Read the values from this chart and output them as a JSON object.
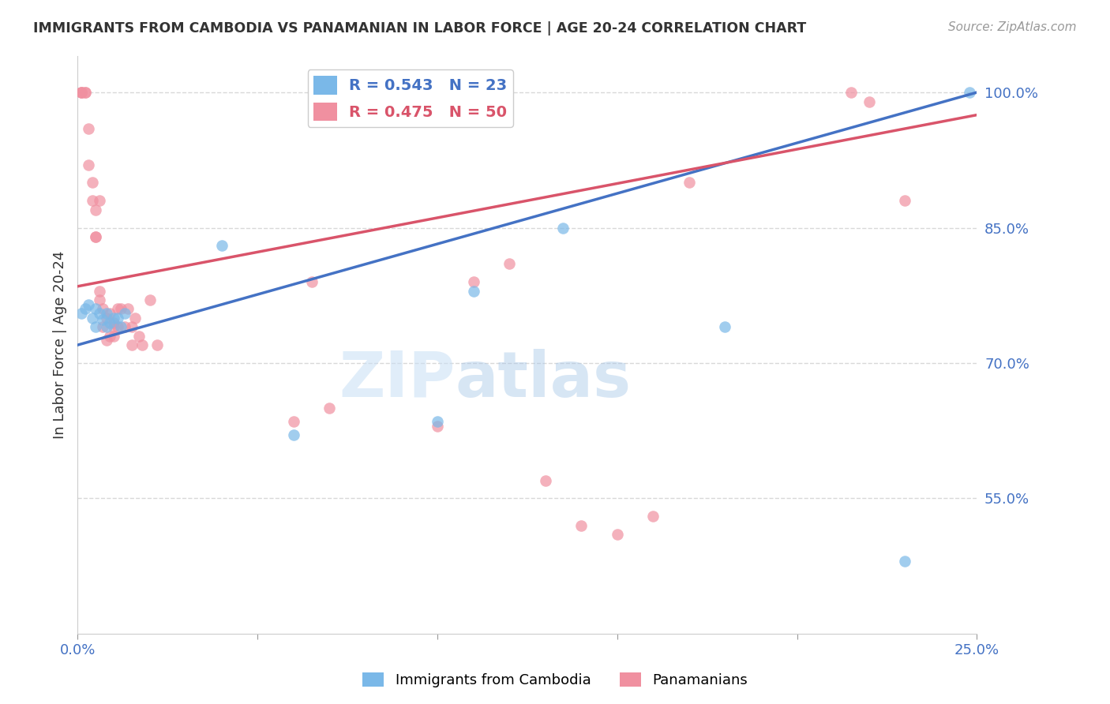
{
  "title": "IMMIGRANTS FROM CAMBODIA VS PANAMANIAN IN LABOR FORCE | AGE 20-24 CORRELATION CHART",
  "source": "Source: ZipAtlas.com",
  "ylabel": "In Labor Force | Age 20-24",
  "xlim": [
    0.0,
    0.25
  ],
  "ylim": [
    0.4,
    1.04
  ],
  "xticks": [
    0.0,
    0.05,
    0.1,
    0.15,
    0.2,
    0.25
  ],
  "xticklabels": [
    "0.0%",
    "",
    "",
    "",
    "",
    "25.0%"
  ],
  "yticks_right": [
    0.55,
    0.7,
    0.85,
    1.0
  ],
  "ytick_labels_right": [
    "55.0%",
    "70.0%",
    "85.0%",
    "100.0%"
  ],
  "blue_R": 0.543,
  "blue_N": 23,
  "pink_R": 0.475,
  "pink_N": 50,
  "blue_color": "#7ab8e8",
  "pink_color": "#f090a0",
  "blue_line_color": "#4472c4",
  "pink_line_color": "#d9546a",
  "legend_label_blue": "Immigrants from Cambodia",
  "legend_label_pink": "Panamanians",
  "blue_scatter_x": [
    0.001,
    0.002,
    0.003,
    0.004,
    0.005,
    0.005,
    0.006,
    0.007,
    0.008,
    0.008,
    0.009,
    0.01,
    0.011,
    0.012,
    0.013,
    0.04,
    0.06,
    0.1,
    0.11,
    0.135,
    0.18,
    0.23,
    0.248
  ],
  "blue_scatter_y": [
    0.755,
    0.76,
    0.765,
    0.75,
    0.76,
    0.74,
    0.755,
    0.748,
    0.755,
    0.74,
    0.745,
    0.75,
    0.75,
    0.74,
    0.755,
    0.83,
    0.62,
    0.635,
    0.78,
    0.85,
    0.74,
    0.48,
    1.0
  ],
  "pink_scatter_x": [
    0.001,
    0.001,
    0.001,
    0.002,
    0.002,
    0.003,
    0.003,
    0.004,
    0.004,
    0.005,
    0.005,
    0.005,
    0.006,
    0.006,
    0.006,
    0.007,
    0.007,
    0.008,
    0.008,
    0.009,
    0.009,
    0.01,
    0.01,
    0.01,
    0.011,
    0.011,
    0.012,
    0.013,
    0.014,
    0.015,
    0.015,
    0.016,
    0.017,
    0.018,
    0.02,
    0.022,
    0.06,
    0.065,
    0.07,
    0.1,
    0.11,
    0.12,
    0.13,
    0.14,
    0.15,
    0.16,
    0.17,
    0.215,
    0.22,
    0.23
  ],
  "pink_scatter_y": [
    1.0,
    1.0,
    1.0,
    1.0,
    1.0,
    0.96,
    0.92,
    0.9,
    0.88,
    0.87,
    0.84,
    0.84,
    0.88,
    0.78,
    0.77,
    0.76,
    0.74,
    0.75,
    0.725,
    0.755,
    0.73,
    0.745,
    0.74,
    0.73,
    0.76,
    0.74,
    0.76,
    0.74,
    0.76,
    0.74,
    0.72,
    0.75,
    0.73,
    0.72,
    0.77,
    0.72,
    0.635,
    0.79,
    0.65,
    0.63,
    0.79,
    0.81,
    0.57,
    0.52,
    0.51,
    0.53,
    0.9,
    1.0,
    0.99,
    0.88
  ],
  "watermark_zip": "ZIP",
  "watermark_atlas": "atlas",
  "background_color": "#ffffff",
  "grid_color": "#d8d8d8",
  "axis_label_color": "#4472c4",
  "title_color": "#333333"
}
